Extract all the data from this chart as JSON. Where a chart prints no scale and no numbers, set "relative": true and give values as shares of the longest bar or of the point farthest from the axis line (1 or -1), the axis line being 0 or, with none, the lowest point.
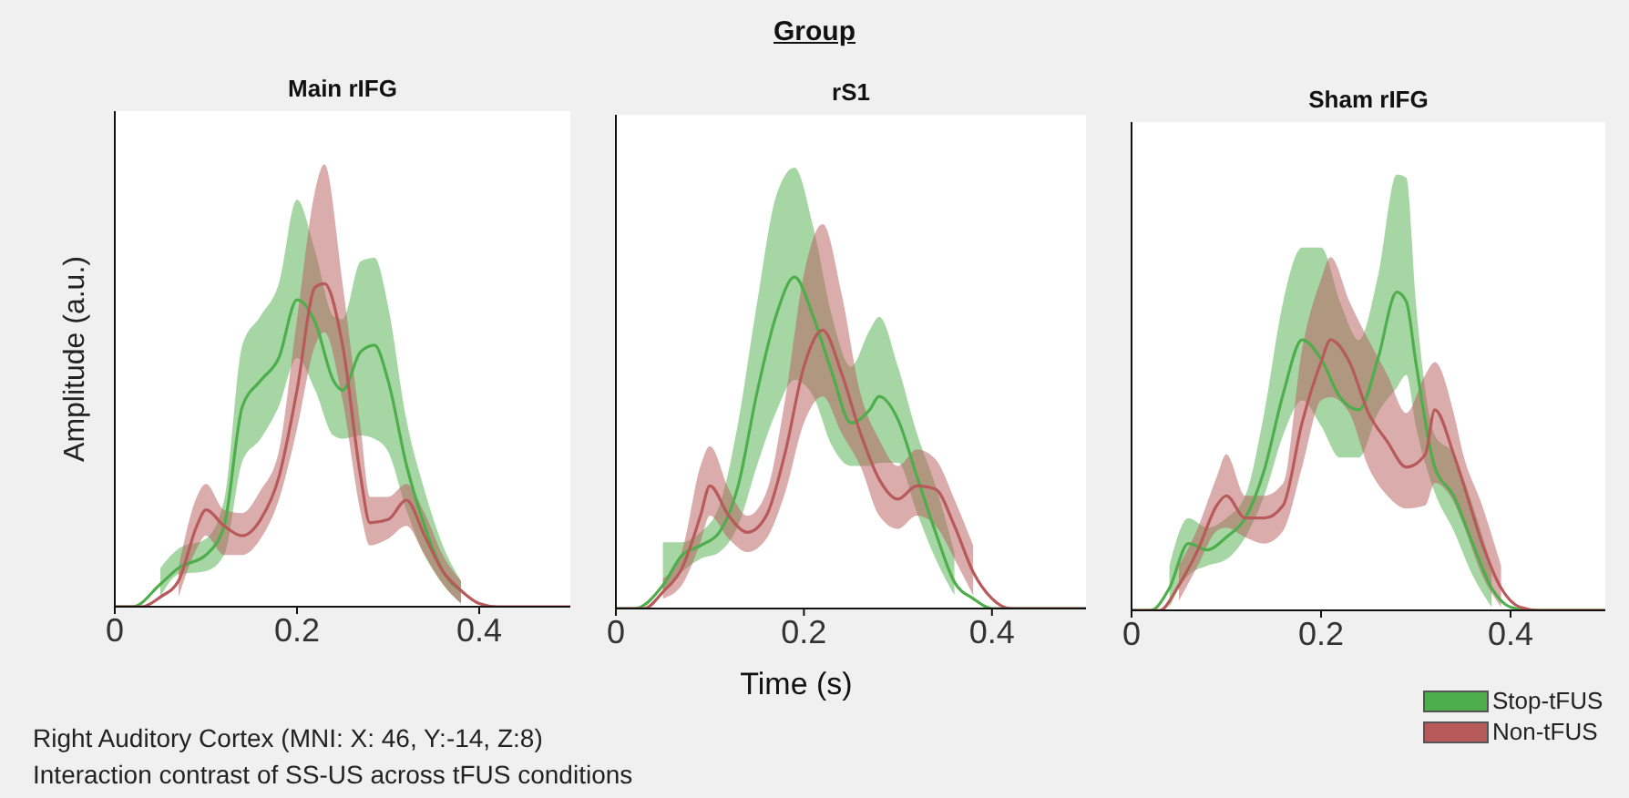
{
  "chart_data": [
    {
      "type": "other",
      "title": "Group",
      "annotations": [
        "Right Auditory Cortex (MNI: X: 46, Y:-14, Z:8)",
        "Interaction contrast of SS-US across tFUS conditions"
      ]
    },
    {
      "type": "line",
      "title": "Main rIFG",
      "ylabel": "Amplitude (a.u.)",
      "relative": true,
      "xlim": [
        0,
        0.5
      ],
      "xticks": [
        0,
        0.2,
        0.4
      ],
      "series": [
        {
          "color": "#4fae4c",
          "x": [
            0,
            0.02,
            0.05,
            0.07,
            0.1,
            0.12,
            0.14,
            0.16,
            0.18,
            0.2,
            0.22,
            0.24,
            0.25,
            0.27,
            0.285,
            0.3,
            0.32,
            0.34,
            0.36,
            0.38
          ],
          "values": [
            0,
            0,
            0.07,
            0.12,
            0.16,
            0.25,
            0.62,
            0.7,
            0.77,
            0.95,
            0.88,
            0.7,
            0.67,
            0.79,
            0.81,
            0.7,
            0.44,
            0.25,
            0.11,
            0.05
          ],
          "lower": [
            null,
            null,
            0.03,
            0.1,
            0.11,
            0.16,
            0.45,
            0.52,
            0.62,
            0.77,
            0.67,
            0.53,
            0.52,
            0.53,
            0.52,
            0.48,
            0.3,
            0.16,
            0.07,
            0.01
          ],
          "upper": [
            null,
            null,
            0.12,
            0.18,
            0.21,
            0.33,
            0.81,
            0.9,
            1,
            1.26,
            1.1,
            0.9,
            0.89,
            1.07,
            1.08,
            0.93,
            0.58,
            0.36,
            0.19,
            0.08
          ]
        },
        {
          "color": "#b8595a",
          "x": [
            0,
            0.03,
            0.05,
            0.07,
            0.09,
            0.1,
            0.12,
            0.14,
            0.16,
            0.18,
            0.2,
            0.22,
            0.23,
            0.25,
            0.27,
            0.28,
            0.3,
            0.32,
            0.34,
            0.36,
            0.38,
            0.4,
            0.42,
            0.5
          ],
          "values": [
            0,
            0,
            0.03,
            0.08,
            0.25,
            0.3,
            0.25,
            0.22,
            0.27,
            0.4,
            0.67,
            0.99,
            1,
            0.81,
            0.4,
            0.26,
            0.27,
            0.33,
            0.22,
            0.11,
            0.05,
            0.01,
            0,
            0
          ],
          "lower": [
            null,
            null,
            null,
            0.03,
            0.18,
            0.22,
            0.16,
            0.16,
            0.21,
            0.33,
            0.55,
            0.81,
            0.85,
            0.64,
            0.29,
            0.19,
            0.21,
            0.25,
            0.16,
            0.07,
            0.01,
            null,
            null,
            null
          ],
          "upper": [
            null,
            null,
            null,
            0.12,
            0.34,
            0.38,
            0.3,
            0.29,
            0.36,
            0.48,
            0.89,
            1.29,
            1.37,
            1,
            0.55,
            0.34,
            0.34,
            0.38,
            0.29,
            0.16,
            0.08,
            null,
            null,
            null
          ]
        }
      ]
    },
    {
      "type": "line",
      "title": "rS1",
      "xlabel": "Time (s)",
      "relative": true,
      "xlim": [
        0,
        0.5
      ],
      "xticks": [
        0,
        0.2,
        0.4
      ],
      "series": [
        {
          "color": "#4fae4c",
          "x": [
            0,
            0.02,
            0.05,
            0.07,
            0.09,
            0.11,
            0.13,
            0.15,
            0.17,
            0.19,
            0.21,
            0.23,
            0.25,
            0.27,
            0.28,
            0.3,
            0.32,
            0.34,
            0.36,
            0.38,
            0.4,
            0.42,
            0.5
          ],
          "values": [
            0,
            0,
            0.07,
            0.16,
            0.19,
            0.23,
            0.37,
            0.65,
            0.88,
            1,
            0.88,
            0.71,
            0.56,
            0.6,
            0.64,
            0.57,
            0.4,
            0.23,
            0.08,
            0.03,
            0,
            0,
            0
          ],
          "lower": [
            null,
            null,
            0.05,
            0.11,
            0.15,
            0.17,
            0.25,
            0.43,
            0.59,
            0.69,
            0.64,
            0.49,
            0.43,
            0.43,
            0.44,
            0.44,
            0.29,
            0.15,
            0.04,
            null,
            null,
            null,
            null
          ],
          "upper": [
            null,
            null,
            0.2,
            0.2,
            0.23,
            0.31,
            0.56,
            0.92,
            1.24,
            1.33,
            1.15,
            0.88,
            0.73,
            0.84,
            0.88,
            0.73,
            0.53,
            0.37,
            0.17,
            null,
            null,
            null,
            null
          ]
        },
        {
          "color": "#b8595a",
          "x": [
            0,
            0.03,
            0.05,
            0.07,
            0.09,
            0.1,
            0.12,
            0.14,
            0.16,
            0.18,
            0.2,
            0.22,
            0.24,
            0.26,
            0.28,
            0.3,
            0.32,
            0.34,
            0.36,
            0.38,
            0.4,
            0.42,
            0.5
          ],
          "values": [
            0,
            0,
            0.05,
            0.12,
            0.28,
            0.37,
            0.28,
            0.23,
            0.28,
            0.47,
            0.73,
            0.84,
            0.71,
            0.53,
            0.39,
            0.33,
            0.37,
            0.36,
            0.25,
            0.11,
            0.03,
            0,
            0
          ],
          "lower": [
            null,
            null,
            0.03,
            0.07,
            0.2,
            0.28,
            0.21,
            0.17,
            0.21,
            0.35,
            0.56,
            0.64,
            0.53,
            0.43,
            0.28,
            0.24,
            0.28,
            0.25,
            0.15,
            0.04,
            null,
            null,
            null
          ],
          "upper": [
            null,
            null,
            0.09,
            0.17,
            0.43,
            0.49,
            0.36,
            0.28,
            0.35,
            0.63,
            1.01,
            1.16,
            0.95,
            0.65,
            0.51,
            0.43,
            0.48,
            0.45,
            0.33,
            0.19,
            null,
            null,
            null
          ]
        }
      ]
    },
    {
      "type": "line",
      "title": "Sham rIFG",
      "relative": true,
      "xlim": [
        0,
        0.5
      ],
      "xticks": [
        0,
        0.2,
        0.4
      ],
      "legend": "bottom right",
      "series": [
        {
          "name": "Stop-tFUS",
          "color": "#4fae4c",
          "x": [
            0,
            0.02,
            0.04,
            0.06,
            0.08,
            0.1,
            0.12,
            0.14,
            0.16,
            0.18,
            0.2,
            0.22,
            0.24,
            0.26,
            0.28,
            0.29,
            0.3,
            0.32,
            0.34,
            0.36,
            0.38,
            0.4,
            0.42,
            0.5
          ],
          "values": [
            0,
            0,
            0.07,
            0.21,
            0.19,
            0.23,
            0.29,
            0.44,
            0.68,
            0.85,
            0.79,
            0.67,
            0.63,
            0.79,
            1,
            0.97,
            0.78,
            0.45,
            0.36,
            0.21,
            0.07,
            0.01,
            0,
            0
          ],
          "lower": [
            null,
            null,
            0.01,
            0.11,
            0.14,
            0.16,
            0.23,
            0.36,
            0.55,
            0.66,
            0.58,
            0.48,
            0.48,
            0.62,
            0.7,
            0.74,
            0.58,
            0.37,
            0.25,
            0.11,
            0.01,
            null,
            null,
            null
          ],
          "upper": [
            null,
            null,
            0.14,
            0.29,
            0.26,
            0.29,
            0.36,
            0.62,
            0.97,
            1.14,
            1.14,
            0.97,
            0.85,
            1.05,
            1.37,
            1.36,
            0.97,
            0.55,
            0.49,
            0.33,
            0.14,
            null,
            null,
            null
          ]
        },
        {
          "name": "Non-tFUS",
          "color": "#b8595a",
          "x": [
            0,
            0.03,
            0.05,
            0.07,
            0.09,
            0.1,
            0.12,
            0.14,
            0.16,
            0.18,
            0.2,
            0.21,
            0.23,
            0.25,
            0.27,
            0.29,
            0.31,
            0.32,
            0.34,
            0.35,
            0.37,
            0.39,
            0.41,
            0.43,
            0.5
          ],
          "values": [
            0,
            0,
            0.08,
            0.19,
            0.33,
            0.36,
            0.29,
            0.29,
            0.33,
            0.59,
            0.78,
            0.85,
            0.78,
            0.62,
            0.53,
            0.45,
            0.49,
            0.63,
            0.49,
            0.4,
            0.21,
            0.07,
            0.01,
            0,
            0
          ],
          "lower": [
            null,
            null,
            0.03,
            0.14,
            0.25,
            0.26,
            0.23,
            0.21,
            0.25,
            0.45,
            0.66,
            0.67,
            0.62,
            0.45,
            0.36,
            0.32,
            0.33,
            0.4,
            0.34,
            0.27,
            0.11,
            0.01,
            null,
            null,
            null
          ],
          "upper": [
            null,
            null,
            0.14,
            0.26,
            0.42,
            0.49,
            0.36,
            0.36,
            0.4,
            0.82,
            1.04,
            1.11,
            0.97,
            0.85,
            0.74,
            0.62,
            0.74,
            0.78,
            0.62,
            0.49,
            0.33,
            0.14,
            null,
            null,
            null
          ]
        }
      ]
    }
  ]
}
